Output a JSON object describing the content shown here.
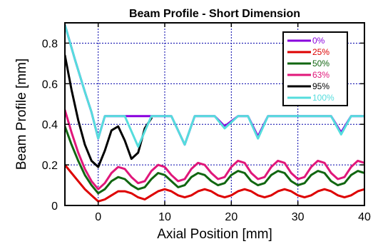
{
  "chart_data": {
    "type": "line",
    "title": "Beam Profile - Short Dimension",
    "xlabel": "Axial Position [mm]",
    "ylabel": "Beam Profile [mm]",
    "xlim": [
      -5,
      40
    ],
    "ylim": [
      0,
      0.9
    ],
    "x_ticks": [
      0,
      10,
      20,
      30,
      40
    ],
    "y_ticks": [
      0,
      0.2,
      0.4,
      0.6,
      0.8
    ],
    "x_tick_labels": [
      "0",
      "10",
      "20",
      "30",
      "40"
    ],
    "y_tick_labels": [
      "0",
      "0.2",
      "0.4",
      "0.6",
      "0.8"
    ],
    "grid": true,
    "legend_position": "top-right",
    "series": [
      {
        "name": "0%",
        "color": "#8800dd",
        "x": [
          -5,
          -3.5,
          -2,
          -1,
          0,
          1,
          2.5,
          4,
          6,
          8,
          9.5,
          11,
          13,
          14.5,
          16,
          17.5,
          19,
          21,
          22.5,
          24,
          25.5,
          27,
          28.5,
          30,
          31.5,
          33,
          35,
          36.5,
          38,
          39.5,
          40
        ],
        "y": [
          0.89,
          0.72,
          0.56,
          0.46,
          0.33,
          0.44,
          0.44,
          0.44,
          0.44,
          0.44,
          0.44,
          0.44,
          0.3,
          0.44,
          0.44,
          0.44,
          0.39,
          0.44,
          0.44,
          0.34,
          0.44,
          0.44,
          0.44,
          0.44,
          0.44,
          0.44,
          0.44,
          0.36,
          0.44,
          0.44,
          0.44
        ]
      },
      {
        "name": "25%",
        "color": "#dd0000",
        "x": [
          -5,
          -4,
          -3,
          -2,
          -1,
          0,
          1,
          2,
          3,
          4,
          5,
          6,
          7,
          8,
          9,
          10,
          11,
          12,
          13,
          14,
          15,
          16,
          17,
          18,
          19,
          20,
          21,
          22,
          23,
          24,
          25,
          26,
          27,
          28,
          29,
          30,
          31,
          32,
          33,
          34,
          35,
          36,
          37,
          38,
          39,
          40
        ],
        "y": [
          0.2,
          0.16,
          0.12,
          0.08,
          0.05,
          0.02,
          0.03,
          0.05,
          0.07,
          0.07,
          0.06,
          0.04,
          0.03,
          0.05,
          0.07,
          0.08,
          0.07,
          0.05,
          0.04,
          0.05,
          0.07,
          0.08,
          0.07,
          0.05,
          0.04,
          0.05,
          0.07,
          0.08,
          0.07,
          0.05,
          0.04,
          0.05,
          0.07,
          0.08,
          0.07,
          0.05,
          0.04,
          0.05,
          0.07,
          0.08,
          0.07,
          0.05,
          0.04,
          0.05,
          0.07,
          0.08
        ]
      },
      {
        "name": "50%",
        "color": "#116611",
        "x": [
          -5,
          -4,
          -3,
          -2,
          -1,
          0,
          1,
          2,
          3,
          4,
          5,
          6,
          7,
          8,
          9,
          10,
          11,
          12,
          13,
          14,
          15,
          16,
          17,
          18,
          19,
          20,
          21,
          22,
          23,
          24,
          25,
          26,
          27,
          28,
          29,
          30,
          31,
          32,
          33,
          34,
          35,
          36,
          37,
          38,
          39,
          40
        ],
        "y": [
          0.39,
          0.3,
          0.22,
          0.15,
          0.1,
          0.06,
          0.08,
          0.12,
          0.14,
          0.13,
          0.1,
          0.08,
          0.09,
          0.13,
          0.16,
          0.15,
          0.12,
          0.09,
          0.1,
          0.14,
          0.16,
          0.15,
          0.12,
          0.1,
          0.11,
          0.15,
          0.17,
          0.16,
          0.12,
          0.1,
          0.11,
          0.15,
          0.17,
          0.16,
          0.12,
          0.1,
          0.11,
          0.15,
          0.17,
          0.16,
          0.12,
          0.1,
          0.11,
          0.15,
          0.17,
          0.16
        ]
      },
      {
        "name": "63%",
        "color": "#e0177a",
        "x": [
          -5,
          -4,
          -3,
          -2,
          -1,
          0,
          1,
          2,
          3,
          4,
          5,
          6,
          7,
          8,
          9,
          10,
          11,
          12,
          13,
          14,
          15,
          16,
          17,
          18,
          19,
          20,
          21,
          22,
          23,
          24,
          25,
          26,
          27,
          28,
          29,
          30,
          31,
          32,
          33,
          34,
          35,
          36,
          37,
          38,
          39,
          40
        ],
        "y": [
          0.47,
          0.36,
          0.26,
          0.18,
          0.12,
          0.08,
          0.11,
          0.16,
          0.19,
          0.18,
          0.14,
          0.11,
          0.12,
          0.17,
          0.2,
          0.19,
          0.15,
          0.12,
          0.13,
          0.18,
          0.21,
          0.2,
          0.16,
          0.13,
          0.14,
          0.19,
          0.22,
          0.21,
          0.16,
          0.13,
          0.14,
          0.19,
          0.22,
          0.21,
          0.16,
          0.13,
          0.14,
          0.19,
          0.22,
          0.21,
          0.16,
          0.13,
          0.14,
          0.19,
          0.22,
          0.21
        ]
      },
      {
        "name": "95%",
        "color": "#000000",
        "x": [
          -5,
          -4,
          -3,
          -2,
          -1,
          0,
          1,
          2,
          3,
          4,
          5,
          6,
          7,
          8
        ],
        "y": [
          0.74,
          0.57,
          0.42,
          0.3,
          0.22,
          0.19,
          0.27,
          0.37,
          0.39,
          0.32,
          0.23,
          0.26,
          0.38,
          0.43
        ]
      },
      {
        "name": "100%",
        "color": "#55dddd",
        "x": [
          -5,
          -3.5,
          -2,
          -1,
          0,
          1,
          2.5,
          4,
          6,
          8,
          9.5,
          11,
          13,
          14.5,
          16,
          17.5,
          19,
          21,
          22.5,
          24,
          25.5,
          27,
          28.5,
          30,
          31.5,
          33,
          35,
          36.5,
          38,
          39.5,
          40
        ],
        "y": [
          0.89,
          0.72,
          0.56,
          0.46,
          0.33,
          0.44,
          0.44,
          0.44,
          0.29,
          0.44,
          0.44,
          0.44,
          0.3,
          0.44,
          0.44,
          0.44,
          0.38,
          0.44,
          0.44,
          0.33,
          0.44,
          0.44,
          0.44,
          0.44,
          0.44,
          0.44,
          0.44,
          0.35,
          0.44,
          0.44,
          0.44
        ]
      }
    ]
  }
}
